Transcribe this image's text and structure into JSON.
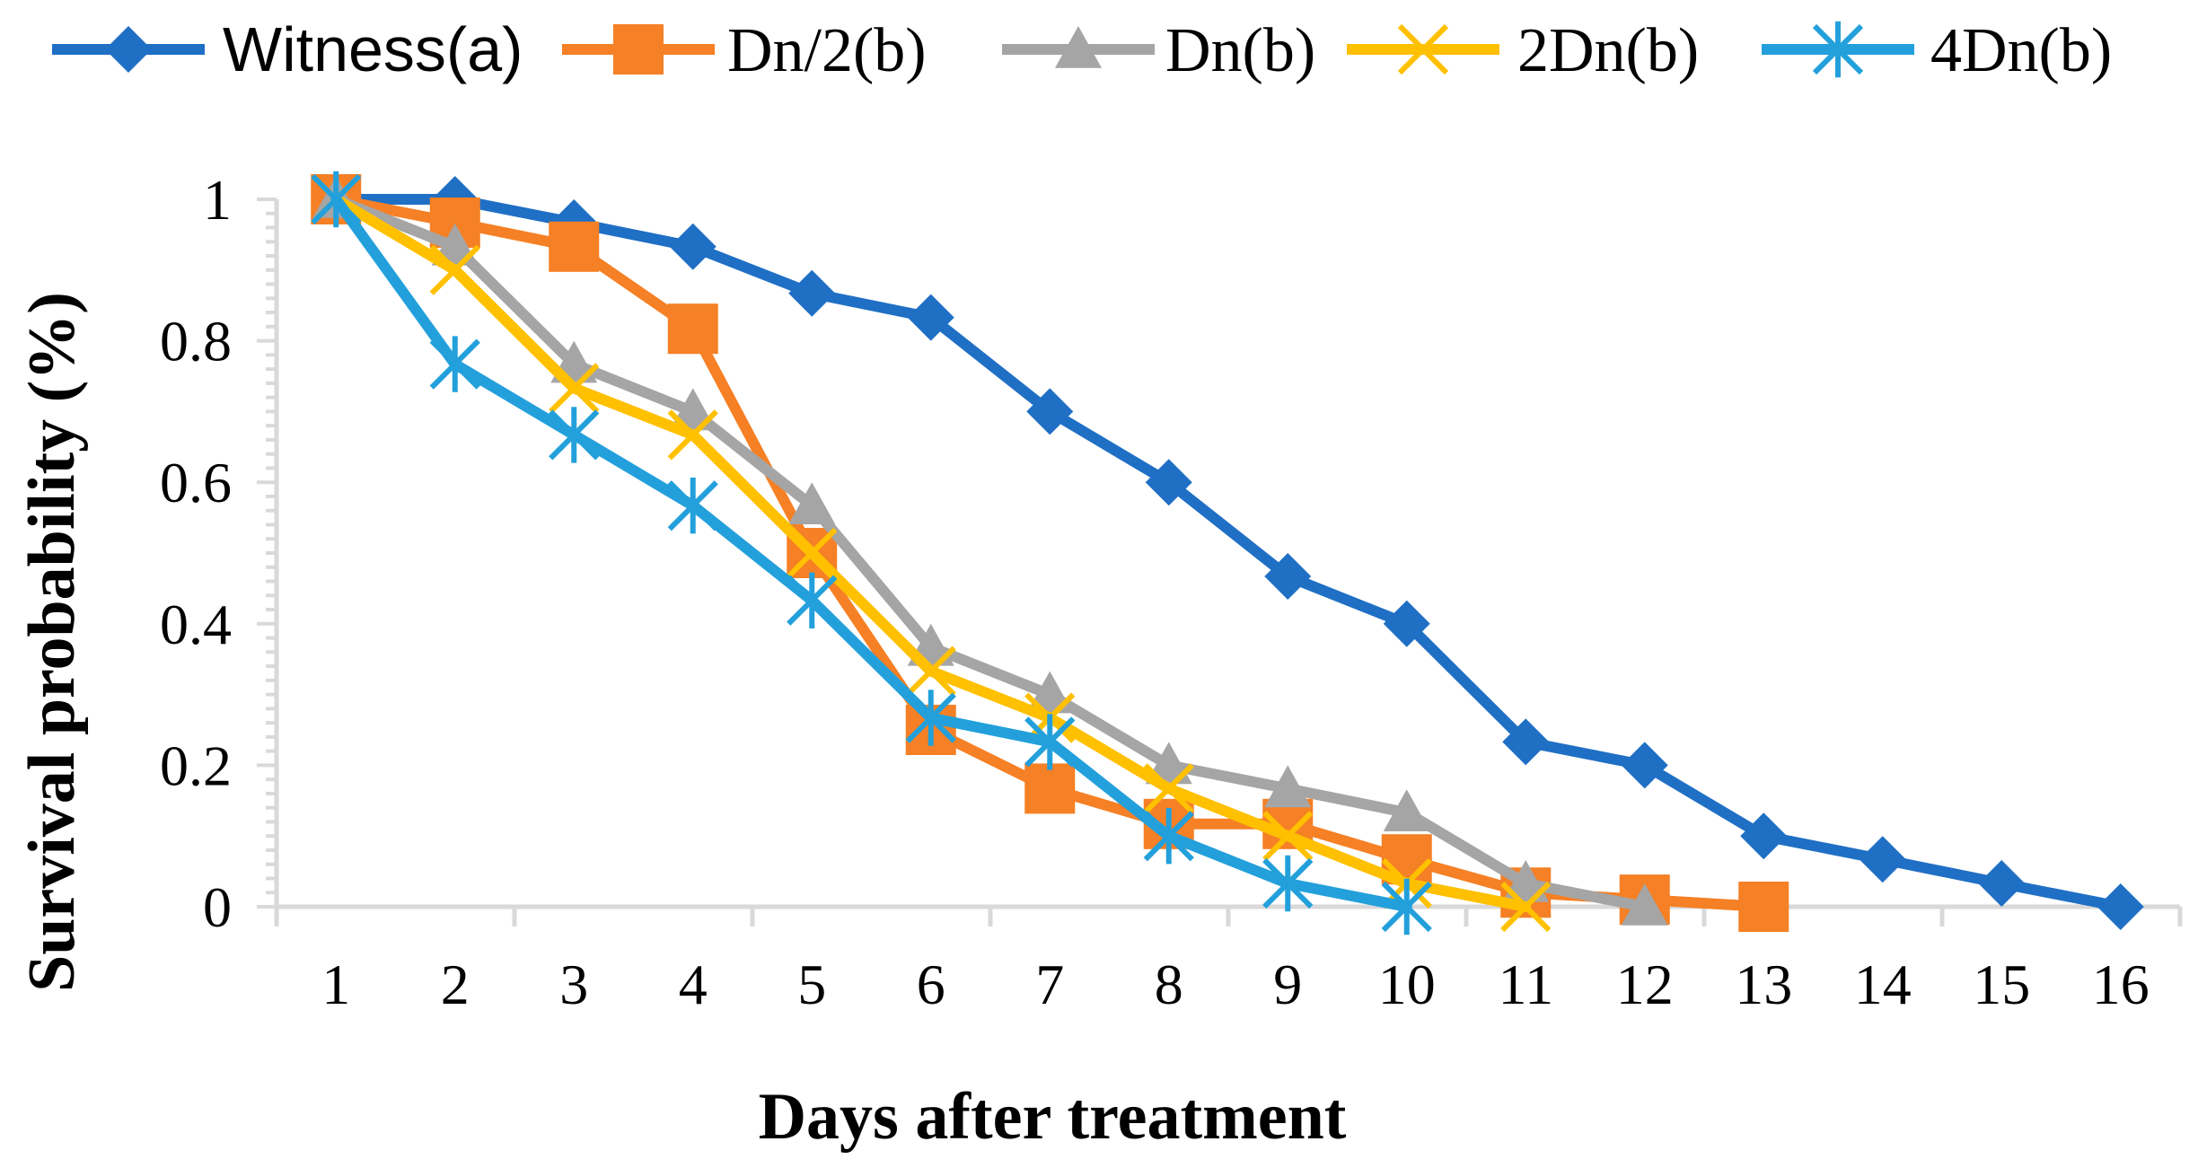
{
  "chart_data": {
    "type": "line",
    "title": "",
    "xlabel": "Days after treatment",
    "ylabel": "Survival probability (%)",
    "categories": [
      "1",
      "2",
      "3",
      "4",
      "5",
      "6",
      "7",
      "8",
      "9",
      "10",
      "11",
      "12",
      "13",
      "14",
      "15",
      "16"
    ],
    "ylim": [
      0,
      1
    ],
    "yticks": [
      "0",
      "0.2",
      "0.4",
      "0.6",
      "0.8",
      "1"
    ],
    "legend_position": "top",
    "series": [
      {
        "name": "Witness(a)",
        "color": "#1F6FC5",
        "marker": "diamond",
        "x": [
          1,
          2,
          3,
          4,
          5,
          6,
          7,
          8,
          9,
          10,
          11,
          12,
          13,
          14,
          15,
          16
        ],
        "values": [
          1,
          1,
          0.967,
          0.933,
          0.867,
          0.833,
          0.7,
          0.6,
          0.467,
          0.4,
          0.233,
          0.2,
          0.1,
          0.067,
          0.033,
          0
        ]
      },
      {
        "name": "Dn/2(b)",
        "color": "#F58025",
        "marker": "square",
        "x": [
          1,
          2,
          3,
          4,
          5,
          6,
          7,
          8,
          9,
          10,
          11,
          12,
          13
        ],
        "values": [
          1,
          0.967,
          0.933,
          0.817,
          0.5,
          0.25,
          0.167,
          0.117,
          0.117,
          0.067,
          0.02,
          0.01,
          0
        ]
      },
      {
        "name": "Dn(b)",
        "color": "#A5A5A5",
        "marker": "triangle",
        "x": [
          1,
          2,
          3,
          4,
          5,
          6,
          7,
          8,
          9,
          10,
          11,
          12
        ],
        "values": [
          1,
          0.933,
          0.767,
          0.7,
          0.567,
          0.367,
          0.3,
          0.2,
          0.167,
          0.133,
          0.033,
          0
        ]
      },
      {
        "name": "2Dn(b)",
        "color": "#FFC000",
        "marker": "x",
        "x": [
          1,
          2,
          3,
          4,
          5,
          6,
          7,
          8,
          9,
          10,
          11
        ],
        "values": [
          1,
          0.9,
          0.733,
          0.667,
          0.5,
          0.333,
          0.267,
          0.167,
          0.1,
          0.033,
          0
        ]
      },
      {
        "name": "4Dn(b)",
        "color": "#23A0DB",
        "marker": "star",
        "x": [
          1,
          2,
          3,
          4,
          5,
          6,
          7,
          8,
          9,
          10
        ],
        "values": [
          1,
          0.767,
          0.667,
          0.567,
          0.433,
          0.267,
          0.233,
          0.1,
          0.033,
          0
        ]
      }
    ]
  }
}
